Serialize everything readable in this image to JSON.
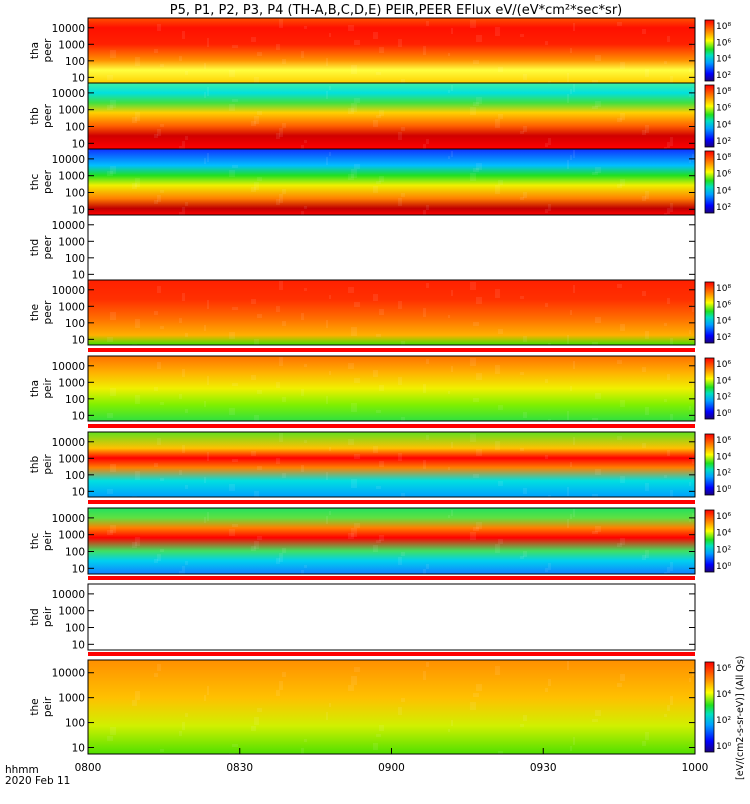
{
  "chart_data": {
    "type": "heatmap",
    "title": "P5, P1, P2, P3, P4 (TH-A,B,C,D,E) PEIR,PEER EFlux eV/(eV*cm²*sec*sr)",
    "xlabel": "hhmm",
    "date_label": "2020 Feb 11",
    "x_ticks": [
      "0800",
      "0830",
      "0900",
      "0930",
      "1000"
    ],
    "y_ticks": [
      "10",
      "100",
      "1000",
      "10000"
    ],
    "y_scale": "log",
    "colorbar_unit": "[eV/(cm2-s-sr-eV)] (All Qs)",
    "panels": [
      {
        "probe": "tha",
        "product": "peer",
        "has_data": true,
        "colorbar_ticks": [
          "10²",
          "10⁴",
          "10⁶",
          "10⁸"
        ]
      },
      {
        "probe": "thb",
        "product": "peer",
        "has_data": true,
        "colorbar_ticks": [
          "10²",
          "10⁴",
          "10⁶",
          "10⁸"
        ]
      },
      {
        "probe": "thc",
        "product": "peer",
        "has_data": true,
        "colorbar_ticks": [
          "10²",
          "10⁴",
          "10⁶",
          "10⁸"
        ]
      },
      {
        "probe": "thd",
        "product": "peer",
        "has_data": false,
        "colorbar_ticks": []
      },
      {
        "probe": "the",
        "product": "peer",
        "has_data": true,
        "colorbar_ticks": [
          "10²",
          "10⁴",
          "10⁶",
          "10⁸"
        ]
      },
      {
        "probe": "tha",
        "product": "peir",
        "has_data": true,
        "colorbar_ticks": [
          "10⁰",
          "10²",
          "10⁴",
          "10⁶"
        ]
      },
      {
        "probe": "thb",
        "product": "peir",
        "has_data": true,
        "colorbar_ticks": [
          "10⁰",
          "10²",
          "10⁴",
          "10⁶"
        ]
      },
      {
        "probe": "thc",
        "product": "peir",
        "has_data": true,
        "colorbar_ticks": [
          "10⁰",
          "10²",
          "10⁴",
          "10⁶"
        ]
      },
      {
        "probe": "thd",
        "product": "peir",
        "has_data": false,
        "colorbar_ticks": []
      },
      {
        "probe": "the",
        "product": "peir",
        "has_data": true,
        "colorbar_ticks": [
          "10⁰",
          "10²",
          "10⁴",
          "10⁶"
        ]
      }
    ]
  }
}
